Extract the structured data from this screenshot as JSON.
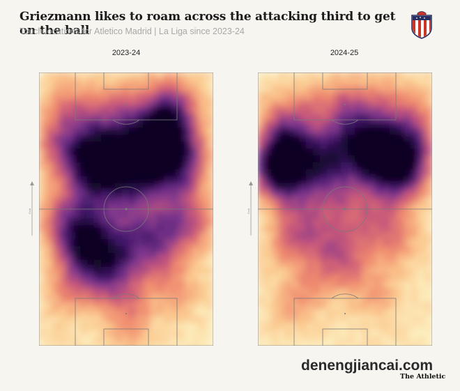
{
  "header": {
    "title": "Griezmann likes to roam across the attacking third to get on the ball",
    "subtitle": "Touch locations for Atletico Madrid | La Liga since 2023-24"
  },
  "crest": {
    "icon": "atletico-madrid-crest",
    "colors": [
      "#cb3524",
      "#ffffff",
      "#272e61"
    ]
  },
  "attack_direction_label": "Goal",
  "colors": {
    "background": "#f6f5f0",
    "pitch_lines": "#7a7a7a",
    "scale": [
      "#fdf3c4",
      "#fbc88e",
      "#f08a6e",
      "#c7567a",
      "#80378f",
      "#3e1467",
      "#0d0522"
    ]
  },
  "footer": {
    "watermark": "denengjiancai.com",
    "publisher": "The Athletic"
  },
  "chart_data": [
    {
      "type": "heatmap",
      "title": "2023-24",
      "x_range": [
        0,
        100
      ],
      "y_range": [
        0,
        100
      ],
      "y_direction": "attacking upward",
      "hotspots": [
        {
          "x": 72,
          "y": 79,
          "intensity": 1.0
        },
        {
          "x": 68,
          "y": 69,
          "intensity": 0.85
        },
        {
          "x": 55,
          "y": 73,
          "intensity": 0.6
        },
        {
          "x": 45,
          "y": 69,
          "intensity": 0.55
        },
        {
          "x": 35,
          "y": 73,
          "intensity": 0.55
        },
        {
          "x": 22,
          "y": 69,
          "intensity": 0.5
        },
        {
          "x": 85,
          "y": 71,
          "intensity": 0.5
        },
        {
          "x": 82,
          "y": 60,
          "intensity": 0.45
        },
        {
          "x": 60,
          "y": 61,
          "intensity": 0.5
        },
        {
          "x": 40,
          "y": 61,
          "intensity": 0.45
        },
        {
          "x": 28,
          "y": 60,
          "intensity": 0.45
        },
        {
          "x": 10,
          "y": 75,
          "intensity": 0.35
        },
        {
          "x": 30,
          "y": 44,
          "intensity": 0.5
        },
        {
          "x": 20,
          "y": 38,
          "intensity": 0.5
        },
        {
          "x": 35,
          "y": 35,
          "intensity": 0.55
        },
        {
          "x": 48,
          "y": 32,
          "intensity": 0.5
        },
        {
          "x": 60,
          "y": 40,
          "intensity": 0.45
        },
        {
          "x": 75,
          "y": 44,
          "intensity": 0.45
        },
        {
          "x": 90,
          "y": 44,
          "intensity": 0.35
        },
        {
          "x": 12,
          "y": 48,
          "intensity": 0.35
        },
        {
          "x": 40,
          "y": 22,
          "intensity": 0.35
        },
        {
          "x": 25,
          "y": 27,
          "intensity": 0.35
        },
        {
          "x": 70,
          "y": 30,
          "intensity": 0.3
        },
        {
          "x": 50,
          "y": 87,
          "intensity": 0.35
        },
        {
          "x": 30,
          "y": 85,
          "intensity": 0.3
        },
        {
          "x": 72,
          "y": 89,
          "intensity": 0.3
        },
        {
          "x": 15,
          "y": 88,
          "intensity": 0.25
        },
        {
          "x": 85,
          "y": 88,
          "intensity": 0.25
        },
        {
          "x": 50,
          "y": 52,
          "intensity": 0.35
        },
        {
          "x": 55,
          "y": 15,
          "intensity": 0.25
        },
        {
          "x": 80,
          "y": 20,
          "intensity": 0.2
        },
        {
          "x": 15,
          "y": 18,
          "intensity": 0.2
        },
        {
          "x": 50,
          "y": 5,
          "intensity": 0.15
        }
      ]
    },
    {
      "type": "heatmap",
      "title": "2024-25",
      "x_range": [
        0,
        100
      ],
      "y_range": [
        0,
        100
      ],
      "y_direction": "attacking upward",
      "hotspots": [
        {
          "x": 11,
          "y": 65,
          "intensity": 1.0
        },
        {
          "x": 18,
          "y": 72,
          "intensity": 0.6
        },
        {
          "x": 70,
          "y": 73,
          "intensity": 0.8
        },
        {
          "x": 80,
          "y": 69,
          "intensity": 0.65
        },
        {
          "x": 87,
          "y": 64,
          "intensity": 0.5
        },
        {
          "x": 62,
          "y": 66,
          "intensity": 0.5
        },
        {
          "x": 45,
          "y": 70,
          "intensity": 0.45
        },
        {
          "x": 30,
          "y": 69,
          "intensity": 0.45
        },
        {
          "x": 55,
          "y": 78,
          "intensity": 0.45
        },
        {
          "x": 38,
          "y": 61,
          "intensity": 0.4
        },
        {
          "x": 75,
          "y": 58,
          "intensity": 0.35
        },
        {
          "x": 20,
          "y": 57,
          "intensity": 0.35
        },
        {
          "x": 92,
          "y": 75,
          "intensity": 0.35
        },
        {
          "x": 30,
          "y": 44,
          "intensity": 0.35
        },
        {
          "x": 45,
          "y": 36,
          "intensity": 0.35
        },
        {
          "x": 65,
          "y": 44,
          "intensity": 0.3
        },
        {
          "x": 80,
          "y": 40,
          "intensity": 0.3
        },
        {
          "x": 18,
          "y": 38,
          "intensity": 0.3
        },
        {
          "x": 55,
          "y": 28,
          "intensity": 0.25
        },
        {
          "x": 35,
          "y": 24,
          "intensity": 0.25
        },
        {
          "x": 50,
          "y": 88,
          "intensity": 0.35
        },
        {
          "x": 30,
          "y": 86,
          "intensity": 0.3
        },
        {
          "x": 70,
          "y": 88,
          "intensity": 0.3
        },
        {
          "x": 12,
          "y": 82,
          "intensity": 0.3
        },
        {
          "x": 88,
          "y": 85,
          "intensity": 0.25
        },
        {
          "x": 50,
          "y": 52,
          "intensity": 0.3
        },
        {
          "x": 70,
          "y": 18,
          "intensity": 0.2
        },
        {
          "x": 20,
          "y": 15,
          "intensity": 0.2
        }
      ]
    }
  ]
}
